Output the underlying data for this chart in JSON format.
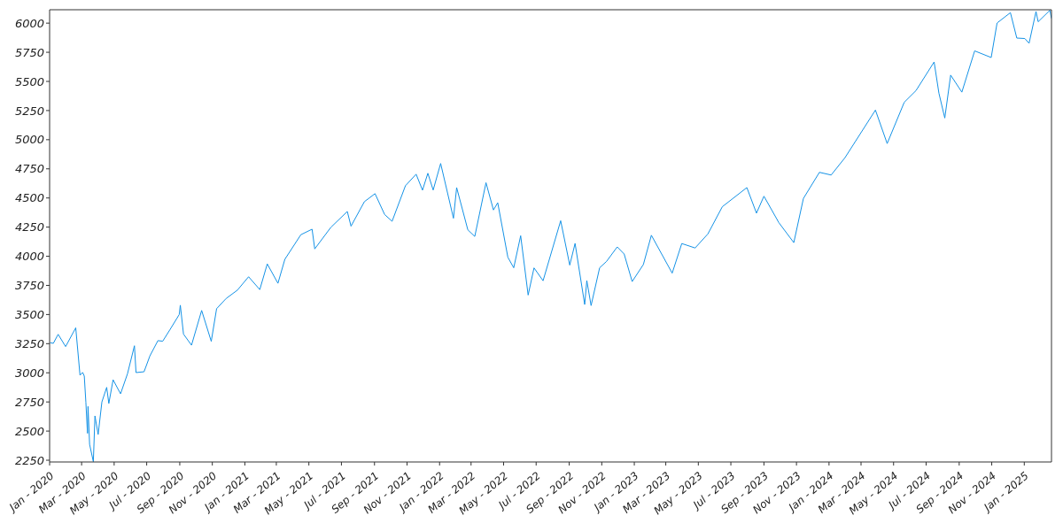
{
  "chart_data": {
    "type": "line",
    "color": "#1492e6",
    "grid": false,
    "legend": false,
    "marker": "none",
    "line_style": "solid",
    "x": [
      "2020-01-02",
      "2020-01-08",
      "2020-01-17",
      "2020-01-31",
      "2020-02-19",
      "2020-02-27",
      "2020-03-03",
      "2020-03-06",
      "2020-03-09",
      "2020-03-12",
      "2020-03-13",
      "2020-03-16",
      "2020-03-23",
      "2020-03-26",
      "2020-04-01",
      "2020-04-08",
      "2020-04-17",
      "2020-04-21",
      "2020-04-29",
      "2020-05-13",
      "2020-05-26",
      "2020-06-08",
      "2020-06-11",
      "2020-06-26",
      "2020-07-07",
      "2020-07-22",
      "2020-07-31",
      "2020-08-14",
      "2020-08-31",
      "2020-09-02",
      "2020-09-08",
      "2020-09-23",
      "2020-10-12",
      "2020-10-30",
      "2020-11-09",
      "2020-11-27",
      "2020-12-18",
      "2021-01-08",
      "2021-01-29",
      "2021-02-12",
      "2021-03-04",
      "2021-03-17",
      "2021-04-16",
      "2021-05-07",
      "2021-05-12",
      "2021-06-11",
      "2021-07-12",
      "2021-07-19",
      "2021-08-13",
      "2021-09-02",
      "2021-09-20",
      "2021-10-04",
      "2021-10-29",
      "2021-11-18",
      "2021-11-30",
      "2021-12-10",
      "2021-12-20",
      "2022-01-03",
      "2022-01-27",
      "2022-02-02",
      "2022-02-23",
      "2022-03-08",
      "2022-03-29",
      "2022-04-12",
      "2022-04-20",
      "2022-05-09",
      "2022-05-20",
      "2022-06-02",
      "2022-06-16",
      "2022-06-27",
      "2022-07-14",
      "2022-08-16",
      "2022-09-02",
      "2022-09-12",
      "2022-09-30",
      "2022-10-04",
      "2022-10-12",
      "2022-10-28",
      "2022-11-10",
      "2022-11-30",
      "2022-12-13",
      "2022-12-28",
      "2023-01-18",
      "2023-02-02",
      "2023-03-13",
      "2023-03-31",
      "2023-04-25",
      "2023-05-19",
      "2023-06-15",
      "2023-07-31",
      "2023-08-18",
      "2023-09-01",
      "2023-09-29",
      "2023-10-27",
      "2023-11-14",
      "2023-12-14",
      "2024-01-05",
      "2024-01-31",
      "2024-03-28",
      "2024-04-19",
      "2024-05-21",
      "2024-06-12",
      "2024-07-16",
      "2024-07-25",
      "2024-08-05",
      "2024-08-16",
      "2024-09-06",
      "2024-09-30",
      "2024-10-31",
      "2024-11-11",
      "2024-12-06",
      "2024-12-18",
      "2025-01-02",
      "2025-01-10",
      "2025-01-23",
      "2025-01-27",
      "2025-02-18",
      "2025-02-21"
    ],
    "values": [
      3258,
      3253,
      3330,
      3225,
      3386,
      2979,
      3003,
      2972,
      2747,
      2481,
      2711,
      2386,
      2237,
      2630,
      2471,
      2750,
      2875,
      2737,
      2940,
      2820,
      2992,
      3232,
      3002,
      3009,
      3145,
      3276,
      3271,
      3373,
      3500,
      3580,
      3332,
      3237,
      3535,
      3270,
      3550,
      3638,
      3709,
      3824,
      3714,
      3934,
      3768,
      3974,
      4185,
      4232,
      4063,
      4247,
      4384,
      4258,
      4468,
      4537,
      4358,
      4300,
      4605,
      4704,
      4567,
      4712,
      4568,
      4796,
      4326,
      4589,
      4226,
      4170,
      4631,
      4397,
      4459,
      3991,
      3901,
      4176,
      3667,
      3900,
      3790,
      4305,
      3924,
      4110,
      3586,
      3791,
      3577,
      3901,
      3956,
      4080,
      4019,
      3783,
      3929,
      4180,
      3855,
      4109,
      4071,
      4192,
      4425,
      4589,
      4370,
      4515,
      4288,
      4117,
      4496,
      4720,
      4697,
      4846,
      5254,
      4967,
      5321,
      5421,
      5667,
      5399,
      5186,
      5554,
      5408,
      5762,
      5705,
      6001,
      6090,
      5872,
      5868,
      5827,
      6100,
      6012,
      6110,
      6040
    ],
    "xlim": [
      "2020-01-01",
      "2025-02-21"
    ],
    "xticks": [
      {
        "value": "2020-01-01",
        "label": "Jan - 2020"
      },
      {
        "value": "2020-03-01",
        "label": "Mar - 2020"
      },
      {
        "value": "2020-05-01",
        "label": "May - 2020"
      },
      {
        "value": "2020-07-01",
        "label": "Jul - 2020"
      },
      {
        "value": "2020-09-01",
        "label": "Sep - 2020"
      },
      {
        "value": "2020-11-01",
        "label": "Nov - 2020"
      },
      {
        "value": "2021-01-01",
        "label": "Jan - 2021"
      },
      {
        "value": "2021-03-01",
        "label": "Mar - 2021"
      },
      {
        "value": "2021-05-01",
        "label": "May - 2021"
      },
      {
        "value": "2021-07-01",
        "label": "Jul - 2021"
      },
      {
        "value": "2021-09-01",
        "label": "Sep - 2021"
      },
      {
        "value": "2021-11-01",
        "label": "Nov - 2021"
      },
      {
        "value": "2022-01-01",
        "label": "Jan - 2022"
      },
      {
        "value": "2022-03-01",
        "label": "Mar - 2022"
      },
      {
        "value": "2022-05-01",
        "label": "May - 2022"
      },
      {
        "value": "2022-07-01",
        "label": "Jul - 2022"
      },
      {
        "value": "2022-09-01",
        "label": "Sep - 2022"
      },
      {
        "value": "2022-11-01",
        "label": "Nov - 2022"
      },
      {
        "value": "2023-01-01",
        "label": "Jan - 2023"
      },
      {
        "value": "2023-03-01",
        "label": "Mar - 2023"
      },
      {
        "value": "2023-05-01",
        "label": "May - 2023"
      },
      {
        "value": "2023-07-01",
        "label": "Jul - 2023"
      },
      {
        "value": "2023-09-01",
        "label": "Sep - 2023"
      },
      {
        "value": "2023-11-01",
        "label": "Nov - 2023"
      },
      {
        "value": "2024-01-01",
        "label": "Jan - 2024"
      },
      {
        "value": "2024-03-01",
        "label": "Mar - 2024"
      },
      {
        "value": "2024-05-01",
        "label": "May - 2024"
      },
      {
        "value": "2024-07-01",
        "label": "Jul - 2024"
      },
      {
        "value": "2024-09-01",
        "label": "Sep - 2024"
      },
      {
        "value": "2024-11-01",
        "label": "Nov - 2024"
      },
      {
        "value": "2025-01-01",
        "label": "Jan - 2025"
      }
    ],
    "ylim": [
      2235,
      6115
    ],
    "yticks": [
      2250,
      2500,
      2750,
      3000,
      3250,
      3500,
      3750,
      4000,
      4250,
      4500,
      4750,
      5000,
      5250,
      5500,
      5750,
      6000
    ]
  }
}
